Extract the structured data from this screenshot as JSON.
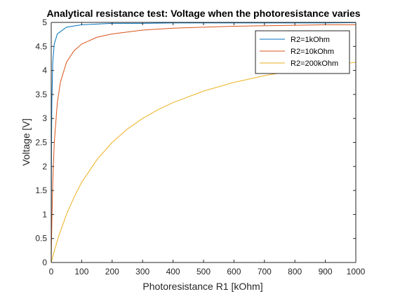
{
  "chart_data": {
    "type": "line",
    "title": "Analytical resistance test: Voltage when the photoresistance varies",
    "xlabel": "Photoresistance R1 [kOhm]",
    "ylabel": "Voltage [V]",
    "xlim": [
      0,
      1000
    ],
    "ylim": [
      0,
      5
    ],
    "xticks": [
      "0",
      "100",
      "200",
      "300",
      "400",
      "500",
      "600",
      "700",
      "800",
      "900",
      "1000"
    ],
    "yticks": [
      "0",
      "0.5",
      "1",
      "1.5",
      "2",
      "2.5",
      "3",
      "3.5",
      "4",
      "4.5",
      "5"
    ],
    "grid": false,
    "legend_position": "top-right",
    "series": [
      {
        "name": "R2=1kOhm",
        "color": "#0072BD",
        "x": [
          0,
          1,
          2,
          5,
          10,
          20,
          50,
          100,
          200,
          300,
          400,
          500,
          600,
          700,
          800,
          900,
          1000
        ],
        "y": [
          0,
          2.5,
          3.33,
          4.17,
          4.55,
          4.76,
          4.9,
          4.95,
          4.98,
          4.98,
          4.99,
          4.99,
          4.99,
          4.99,
          4.99,
          4.99,
          4.995
        ]
      },
      {
        "name": "R2=10kOhm",
        "color": "#D95319",
        "x": [
          0,
          1,
          2,
          5,
          10,
          20,
          30,
          50,
          75,
          100,
          150,
          200,
          300,
          400,
          500,
          600,
          700,
          800,
          900,
          1000
        ],
        "y": [
          0,
          0.45,
          0.83,
          1.67,
          2.5,
          3.33,
          3.75,
          4.17,
          4.41,
          4.55,
          4.69,
          4.76,
          4.84,
          4.88,
          4.9,
          4.92,
          4.93,
          4.94,
          4.95,
          4.95
        ]
      },
      {
        "name": "R2=200kOhm",
        "color": "#EDB120",
        "x": [
          0,
          10,
          25,
          50,
          75,
          100,
          150,
          200,
          250,
          300,
          350,
          400,
          500,
          600,
          700,
          800,
          900,
          1000
        ],
        "y": [
          0,
          0.24,
          0.56,
          1.0,
          1.36,
          1.67,
          2.14,
          2.5,
          2.78,
          3.0,
          3.18,
          3.33,
          3.57,
          3.75,
          3.89,
          4.0,
          4.09,
          4.17
        ]
      }
    ]
  }
}
